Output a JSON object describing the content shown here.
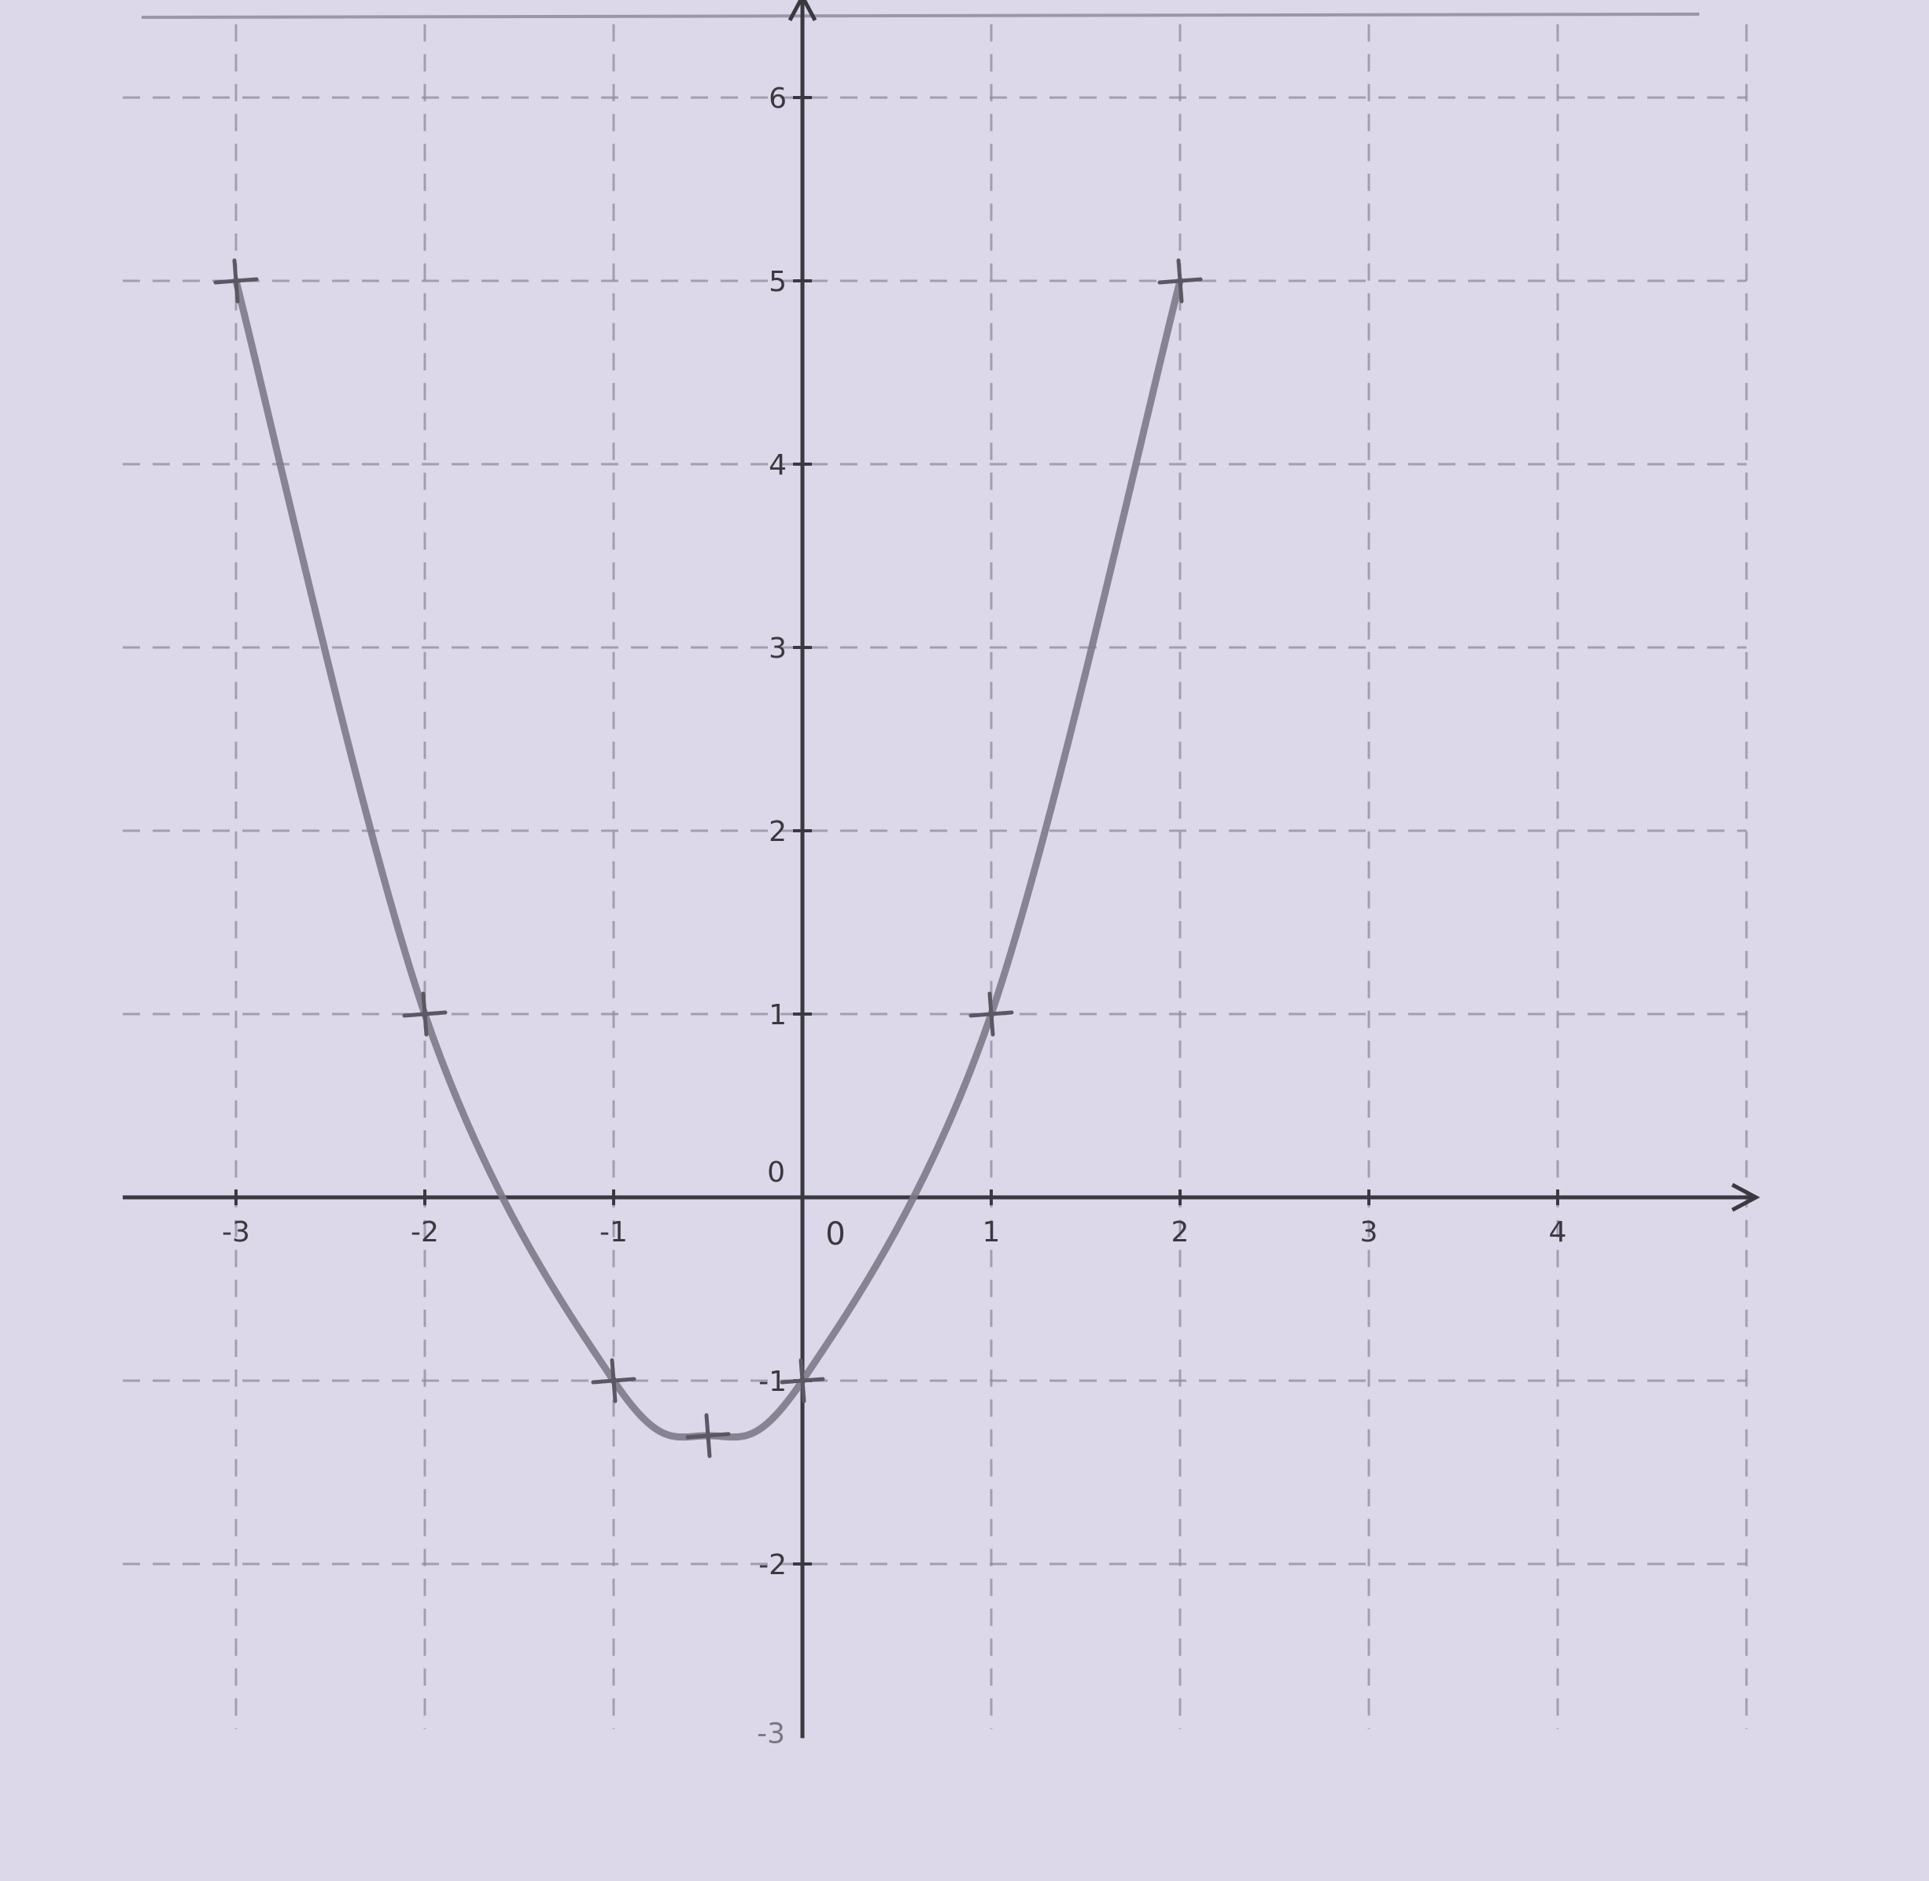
{
  "chart_data": {
    "type": "line",
    "title": "",
    "xlabel": "",
    "ylabel": "",
    "xlim": [
      -3.5,
      4.9
    ],
    "ylim": [
      -3,
      6.5
    ],
    "grid": true,
    "x_ticks": [
      -3,
      -2,
      -1,
      1,
      2,
      3,
      4
    ],
    "x_tick_labels": [
      "-3",
      "-2",
      "-1",
      "1",
      "2",
      "3",
      "4"
    ],
    "y_ticks": [
      -2,
      -1,
      1,
      2,
      3,
      4,
      5,
      6
    ],
    "y_tick_labels": [
      "-2",
      "-1",
      "1",
      "2",
      "3",
      "4",
      "5",
      "6"
    ],
    "y_axis_zero_label": "0",
    "y_axis_bottom_label": "-3",
    "origin_label": "0",
    "series": [
      {
        "points": [
          {
            "x": -3,
            "y": 5
          },
          {
            "x": -2,
            "y": 1
          },
          {
            "x": -1,
            "y": -1
          },
          {
            "x": -0.5,
            "y": -1.3
          },
          {
            "x": 0,
            "y": -1
          },
          {
            "x": 1,
            "y": 1
          },
          {
            "x": 2,
            "y": 5
          }
        ]
      }
    ],
    "marked_points": [
      {
        "x": -3,
        "y": 5
      },
      {
        "x": -2,
        "y": 1
      },
      {
        "x": -1,
        "y": -1
      },
      {
        "x": -0.5,
        "y": -1.3
      },
      {
        "x": 0,
        "y": -1
      },
      {
        "x": 1,
        "y": 1
      },
      {
        "x": 2,
        "y": 5
      }
    ]
  },
  "colors": {
    "paper": "#dcd8ea",
    "axis": "#3a3940",
    "grid": "#8f8ba0",
    "curve": "#7d7a88"
  }
}
